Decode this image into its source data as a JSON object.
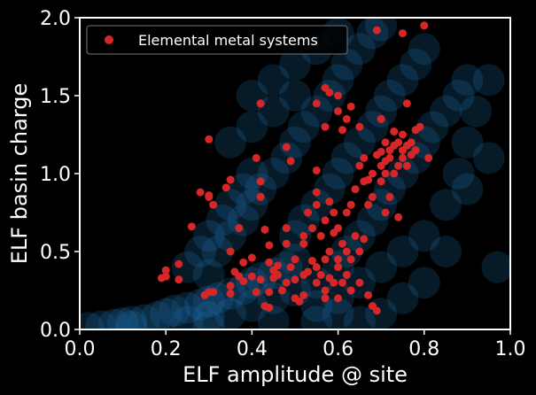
{
  "chart_data": {
    "type": "scatter",
    "title": "",
    "xlabel": "ELF amplitude @ site",
    "ylabel": "ELF basin charge",
    "xlim": [
      0.0,
      1.0
    ],
    "ylim": [
      0.0,
      2.0
    ],
    "xticks": [
      "0.0",
      "0.2",
      "0.4",
      "0.6",
      "0.8",
      "1.0"
    ],
    "yticks": [
      "0.0",
      "0.5",
      "1.0",
      "1.5",
      "2.0"
    ],
    "xtick_values": [
      0.0,
      0.2,
      0.4,
      0.6,
      0.8,
      1.0
    ],
    "ytick_values": [
      0.0,
      0.5,
      1.0,
      1.5,
      2.0
    ],
    "grid": false,
    "legend_position": "top-left",
    "background_color": "#000000",
    "series": [
      {
        "name": "",
        "color": "#1f77b4",
        "marker": "circle, translucent dense cloud",
        "points": [
          [
            0.02,
            0.01
          ],
          [
            0.05,
            0.02
          ],
          [
            0.08,
            0.03
          ],
          [
            0.1,
            0.04
          ],
          [
            0.12,
            0.05
          ],
          [
            0.15,
            0.06
          ],
          [
            0.18,
            0.08
          ],
          [
            0.2,
            0.1
          ],
          [
            0.22,
            0.12
          ],
          [
            0.25,
            0.14
          ],
          [
            0.28,
            0.16
          ],
          [
            0.3,
            0.18
          ],
          [
            0.32,
            0.2
          ],
          [
            0.35,
            0.23
          ],
          [
            0.38,
            0.26
          ],
          [
            0.4,
            0.3
          ],
          [
            0.42,
            0.33
          ],
          [
            0.45,
            0.36
          ],
          [
            0.48,
            0.4
          ],
          [
            0.5,
            0.45
          ],
          [
            0.3,
            0.35
          ],
          [
            0.32,
            0.5
          ],
          [
            0.35,
            0.6
          ],
          [
            0.38,
            0.7
          ],
          [
            0.4,
            0.8
          ],
          [
            0.42,
            0.9
          ],
          [
            0.45,
            1.0
          ],
          [
            0.48,
            1.1
          ],
          [
            0.5,
            1.2
          ],
          [
            0.52,
            1.3
          ],
          [
            0.55,
            1.4
          ],
          [
            0.58,
            1.5
          ],
          [
            0.6,
            1.6
          ],
          [
            0.62,
            1.7
          ],
          [
            0.65,
            1.8
          ],
          [
            0.68,
            1.9
          ],
          [
            0.7,
            1.95
          ],
          [
            0.4,
            1.5
          ],
          [
            0.45,
            1.6
          ],
          [
            0.5,
            1.7
          ],
          [
            0.55,
            1.8
          ],
          [
            0.6,
            1.9
          ],
          [
            0.55,
            0.3
          ],
          [
            0.6,
            0.4
          ],
          [
            0.62,
            0.5
          ],
          [
            0.65,
            0.6
          ],
          [
            0.68,
            0.7
          ],
          [
            0.7,
            0.8
          ],
          [
            0.72,
            0.9
          ],
          [
            0.75,
            1.0
          ],
          [
            0.78,
            1.1
          ],
          [
            0.8,
            1.2
          ],
          [
            0.82,
            1.3
          ],
          [
            0.85,
            1.4
          ],
          [
            0.88,
            1.5
          ],
          [
            0.9,
            1.6
          ],
          [
            0.5,
            0.6
          ],
          [
            0.52,
            0.7
          ],
          [
            0.55,
            0.8
          ],
          [
            0.58,
            0.9
          ],
          [
            0.6,
            1.0
          ],
          [
            0.62,
            1.1
          ],
          [
            0.65,
            1.2
          ],
          [
            0.68,
            1.3
          ],
          [
            0.7,
            1.4
          ],
          [
            0.72,
            1.5
          ],
          [
            0.75,
            1.6
          ],
          [
            0.78,
            1.7
          ],
          [
            0.8,
            1.8
          ],
          [
            0.25,
            0.4
          ],
          [
            0.28,
            0.5
          ],
          [
            0.3,
            0.6
          ],
          [
            0.33,
            0.7
          ],
          [
            0.35,
            0.8
          ],
          [
            0.38,
            0.9
          ],
          [
            0.4,
            1.0
          ],
          [
            0.35,
            1.2
          ],
          [
            0.4,
            1.3
          ],
          [
            0.45,
            1.4
          ],
          [
            0.5,
            1.5
          ],
          [
            0.6,
            0.2
          ],
          [
            0.65,
            0.3
          ],
          [
            0.7,
            0.4
          ],
          [
            0.75,
            0.5
          ],
          [
            0.8,
            0.6
          ],
          [
            0.85,
            0.8
          ],
          [
            0.88,
            1.0
          ],
          [
            0.9,
            1.2
          ],
          [
            0.92,
            1.4
          ],
          [
            0.95,
            1.6
          ],
          [
            0.45,
            0.2
          ],
          [
            0.5,
            0.25
          ],
          [
            0.55,
            0.15
          ],
          [
            0.6,
            0.1
          ],
          [
            0.4,
            0.15
          ],
          [
            0.35,
            0.1
          ],
          [
            0.3,
            0.08
          ],
          [
            0.25,
            0.05
          ],
          [
            0.65,
            0.05
          ],
          [
            0.7,
            0.1
          ],
          [
            0.12,
            0.02
          ],
          [
            0.3,
            0.02
          ],
          [
            0.45,
            0.05
          ],
          [
            0.55,
            0.05
          ],
          [
            0.75,
            0.2
          ],
          [
            0.8,
            0.3
          ],
          [
            0.85,
            0.5
          ],
          [
            0.9,
            0.9
          ],
          [
            0.95,
            1.1
          ],
          [
            0.97,
            0.4
          ]
        ]
      },
      {
        "name": "Elemental metal systems",
        "color": "#d62728",
        "marker": "circle",
        "points": [
          [
            0.2,
            0.38
          ],
          [
            0.2,
            0.34
          ],
          [
            0.19,
            0.33
          ],
          [
            0.23,
            0.42
          ],
          [
            0.23,
            0.32
          ],
          [
            0.26,
            0.66
          ],
          [
            0.3,
            0.24
          ],
          [
            0.31,
            0.24
          ],
          [
            0.29,
            0.22
          ],
          [
            0.35,
            0.23
          ],
          [
            0.35,
            0.28
          ],
          [
            0.38,
            0.31
          ],
          [
            0.28,
            0.88
          ],
          [
            0.3,
            0.86
          ],
          [
            0.3,
            1.22
          ],
          [
            0.3,
            0.85
          ],
          [
            0.31,
            0.8
          ],
          [
            0.34,
            0.91
          ],
          [
            0.35,
            0.96
          ],
          [
            0.36,
            0.37
          ],
          [
            0.35,
            0.5
          ],
          [
            0.37,
            0.34
          ],
          [
            0.38,
            0.43
          ],
          [
            0.37,
            0.65
          ],
          [
            0.4,
            0.46
          ],
          [
            0.4,
            0.34
          ],
          [
            0.41,
            0.24
          ],
          [
            0.42,
            0.85
          ],
          [
            0.42,
            0.95
          ],
          [
            0.41,
            1.1
          ],
          [
            0.42,
            0.32
          ],
          [
            0.44,
            0.24
          ],
          [
            0.44,
            0.43
          ],
          [
            0.43,
            0.64
          ],
          [
            0.42,
            1.45
          ],
          [
            0.44,
            0.54
          ],
          [
            0.45,
            0.33
          ],
          [
            0.46,
            0.35
          ],
          [
            0.46,
            0.41
          ],
          [
            0.45,
            0.38
          ],
          [
            0.43,
            0.15
          ],
          [
            0.44,
            0.14
          ],
          [
            0.47,
            0.25
          ],
          [
            0.48,
            0.3
          ],
          [
            0.48,
            0.55
          ],
          [
            0.48,
            0.65
          ],
          [
            0.49,
            0.4
          ],
          [
            0.5,
            0.45
          ],
          [
            0.49,
            1.08
          ],
          [
            0.48,
            1.17
          ],
          [
            0.5,
            0.32
          ],
          [
            0.5,
            0.2
          ],
          [
            0.51,
            0.18
          ],
          [
            0.52,
            0.22
          ],
          [
            0.52,
            0.35
          ],
          [
            0.52,
            0.55
          ],
          [
            0.52,
            0.6
          ],
          [
            0.53,
            0.37
          ],
          [
            0.53,
            0.75
          ],
          [
            0.54,
            0.44
          ],
          [
            0.54,
            0.65
          ],
          [
            0.55,
            0.3
          ],
          [
            0.55,
            0.4
          ],
          [
            0.55,
            0.8
          ],
          [
            0.55,
            0.88
          ],
          [
            0.55,
            1.45
          ],
          [
            0.55,
            1.02
          ],
          [
            0.56,
            0.35
          ],
          [
            0.56,
            0.6
          ],
          [
            0.57,
            0.2
          ],
          [
            0.57,
            0.25
          ],
          [
            0.57,
            0.45
          ],
          [
            0.57,
            0.7
          ],
          [
            0.57,
            1.3
          ],
          [
            0.57,
            1.55
          ],
          [
            0.58,
            0.33
          ],
          [
            0.58,
            0.5
          ],
          [
            0.58,
            0.82
          ],
          [
            0.58,
            1.52
          ],
          [
            0.59,
            0.3
          ],
          [
            0.59,
            0.62
          ],
          [
            0.59,
            0.75
          ],
          [
            0.6,
            0.4
          ],
          [
            0.6,
            0.45
          ],
          [
            0.6,
            0.2
          ],
          [
            0.6,
            0.65
          ],
          [
            0.6,
            1.4
          ],
          [
            0.6,
            1.5
          ],
          [
            0.61,
            0.3
          ],
          [
            0.61,
            0.55
          ],
          [
            0.61,
            1.28
          ],
          [
            0.62,
            0.35
          ],
          [
            0.62,
            0.5
          ],
          [
            0.62,
            0.75
          ],
          [
            0.62,
            1.35
          ],
          [
            0.63,
            0.25
          ],
          [
            0.63,
            0.45
          ],
          [
            0.63,
            0.8
          ],
          [
            0.63,
            1.43
          ],
          [
            0.64,
            0.6
          ],
          [
            0.64,
            0.9
          ],
          [
            0.65,
            0.3
          ],
          [
            0.65,
            0.5
          ],
          [
            0.65,
            1.05
          ],
          [
            0.65,
            1.3
          ],
          [
            0.66,
            0.95
          ],
          [
            0.66,
            1.1
          ],
          [
            0.66,
            0.58
          ],
          [
            0.67,
            0.22
          ],
          [
            0.67,
            0.8
          ],
          [
            0.67,
            0.96
          ],
          [
            0.68,
            0.85
          ],
          [
            0.68,
            1.0
          ],
          [
            0.68,
            0.15
          ],
          [
            0.69,
            1.12
          ],
          [
            0.69,
            0.12
          ],
          [
            0.69,
            1.92
          ],
          [
            0.7,
            0.95
          ],
          [
            0.7,
            1.05
          ],
          [
            0.7,
            1.14
          ],
          [
            0.7,
            1.35
          ],
          [
            0.71,
            1.0
          ],
          [
            0.71,
            1.08
          ],
          [
            0.71,
            1.2
          ],
          [
            0.71,
            0.75
          ],
          [
            0.72,
            1.1
          ],
          [
            0.72,
            1.15
          ],
          [
            0.72,
            0.85
          ],
          [
            0.73,
            1.0
          ],
          [
            0.73,
            1.18
          ],
          [
            0.73,
            1.27
          ],
          [
            0.74,
            1.05
          ],
          [
            0.74,
            1.2
          ],
          [
            0.74,
            0.72
          ],
          [
            0.75,
            1.15
          ],
          [
            0.75,
            1.25
          ],
          [
            0.75,
            1.1
          ],
          [
            0.75,
            1.9
          ],
          [
            0.76,
            1.18
          ],
          [
            0.76,
            1.05
          ],
          [
            0.76,
            1.45
          ],
          [
            0.77,
            1.2
          ],
          [
            0.77,
            1.12
          ],
          [
            0.78,
            1.28
          ],
          [
            0.78,
            1.15
          ],
          [
            0.79,
            1.3
          ],
          [
            0.8,
            1.95
          ],
          [
            0.81,
            1.1
          ]
        ]
      }
    ]
  },
  "legend": {
    "label": "Elemental metal systems"
  }
}
